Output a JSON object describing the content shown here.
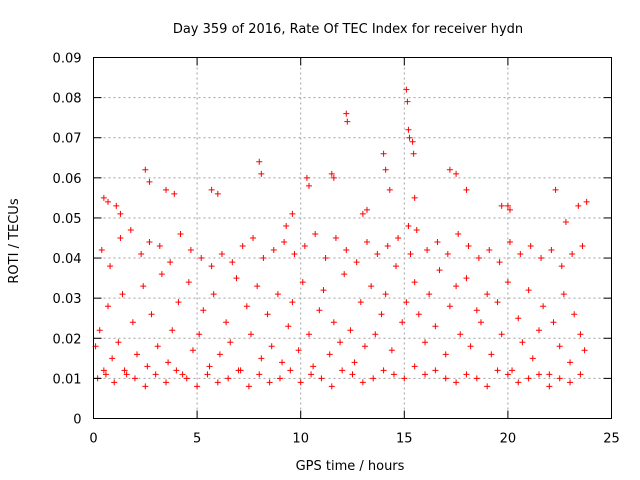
{
  "chart_data": {
    "type": "scatter",
    "title": "Day 359 of 2016, Rate Of TEC Index for receiver hydn",
    "xlabel": "GPS time / hours",
    "ylabel": "ROTI / TECUs",
    "xlim": [
      0,
      25
    ],
    "ylim": [
      0,
      0.09
    ],
    "xticks": [
      "0",
      "5",
      "10",
      "15",
      "20",
      "25"
    ],
    "yticks": [
      "0",
      "0.01",
      "0.02",
      "0.03",
      "0.04",
      "0.05",
      "0.06",
      "0.07",
      "0.08",
      "0.09"
    ],
    "grid": true,
    "marker": "plus",
    "color": "#ff0000",
    "series": [
      {
        "x": [
          0.1,
          0.3,
          0.5,
          0.7,
          0.9,
          1.2,
          1.4,
          1.6,
          1.9,
          2.1,
          2.4,
          2.6,
          2.8,
          3.1,
          3.3,
          3.6,
          3.8,
          4.1,
          4.3,
          4.6,
          4.8,
          5.1,
          5.3,
          5.6,
          5.8,
          6.1,
          6.4,
          6.6,
          6.9,
          7.1,
          7.4,
          7.6,
          7.9,
          8.1,
          8.4,
          8.6,
          8.9,
          9.1,
          9.4,
          9.6,
          9.9,
          10.1,
          10.4,
          10.6,
          10.9,
          11.1,
          11.4,
          11.6,
          11.9,
          12.1,
          12.4,
          12.6,
          12.9,
          13.1,
          13.4,
          13.6,
          13.9,
          14.1,
          14.4,
          14.6,
          14.9,
          15.1,
          15.3,
          15.5,
          15.7,
          16.0,
          16.2,
          16.5,
          16.7,
          17.0,
          17.2,
          17.5,
          17.7,
          18.0,
          18.2,
          18.5,
          18.7,
          19.0,
          19.2,
          19.5,
          19.7,
          20.0,
          20.2,
          20.5,
          20.7,
          21.0,
          21.2,
          21.5,
          21.7,
          22.0,
          22.2,
          22.5,
          22.7,
          23.0,
          23.2,
          23.5,
          23.7,
          0.2,
          0.6,
          1.0,
          1.5,
          2.0,
          2.5,
          3.0,
          3.5,
          4.0,
          4.5,
          5.0,
          5.5,
          6.0,
          6.5,
          7.0,
          7.5,
          8.0,
          8.5,
          9.0,
          9.5,
          10.0,
          10.5,
          11.0,
          11.5,
          12.0,
          12.5,
          13.0,
          13.5,
          14.0,
          14.5,
          15.0,
          15.5,
          16.0,
          16.5,
          17.0,
          17.5,
          18.0,
          18.5,
          19.0,
          19.5,
          20.0,
          20.5,
          21.0,
          21.5,
          22.0,
          22.5,
          23.0,
          23.5,
          0.4,
          0.8,
          1.3,
          1.8,
          2.3,
          2.7,
          3.2,
          3.7,
          4.2,
          4.7,
          5.2,
          5.7,
          6.2,
          6.7,
          7.2,
          7.7,
          8.2,
          8.7,
          9.2,
          9.7,
          10.2,
          10.7,
          11.2,
          11.7,
          12.2,
          12.7,
          13.2,
          13.7,
          14.2,
          14.7,
          15.2,
          15.6,
          16.1,
          16.6,
          17.1,
          17.6,
          18.1,
          18.6,
          19.1,
          19.6,
          20.1,
          20.6,
          21.1,
          21.6,
          22.1,
          22.6,
          23.1,
          23.6,
          8.0,
          8.1,
          10.3,
          10.4,
          11.5,
          11.6,
          12.2,
          12.25,
          14.0,
          14.1,
          15.1,
          15.15,
          15.2,
          15.25,
          15.4,
          15.45,
          15.5,
          14.3,
          2.5,
          2.7,
          3.5,
          3.9,
          5.7,
          6.0,
          17.2,
          17.5,
          18.0,
          19.7,
          20.0,
          20.1,
          22.3,
          22.8,
          23.4,
          23.8,
          13.0,
          13.2,
          9.3,
          9.6,
          0.5,
          0.7,
          1.1,
          1.3
        ],
        "y": [
          0.018,
          0.022,
          0.012,
          0.028,
          0.015,
          0.019,
          0.031,
          0.011,
          0.024,
          0.016,
          0.033,
          0.013,
          0.026,
          0.018,
          0.036,
          0.014,
          0.022,
          0.029,
          0.011,
          0.034,
          0.017,
          0.021,
          0.027,
          0.013,
          0.031,
          0.016,
          0.024,
          0.019,
          0.035,
          0.012,
          0.028,
          0.021,
          0.033,
          0.015,
          0.026,
          0.018,
          0.031,
          0.014,
          0.023,
          0.029,
          0.017,
          0.034,
          0.021,
          0.013,
          0.027,
          0.032,
          0.016,
          0.024,
          0.019,
          0.036,
          0.022,
          0.014,
          0.029,
          0.018,
          0.033,
          0.021,
          0.026,
          0.031,
          0.017,
          0.038,
          0.024,
          0.029,
          0.041,
          0.034,
          0.026,
          0.019,
          0.031,
          0.023,
          0.037,
          0.016,
          0.028,
          0.033,
          0.021,
          0.035,
          0.018,
          0.027,
          0.024,
          0.031,
          0.016,
          0.029,
          0.021,
          0.034,
          0.012,
          0.025,
          0.019,
          0.032,
          0.015,
          0.022,
          0.028,
          0.011,
          0.024,
          0.018,
          0.031,
          0.014,
          0.026,
          0.021,
          0.017,
          0.01,
          0.011,
          0.009,
          0.012,
          0.01,
          0.008,
          0.011,
          0.009,
          0.012,
          0.01,
          0.008,
          0.011,
          0.009,
          0.01,
          0.012,
          0.008,
          0.011,
          0.009,
          0.01,
          0.012,
          0.009,
          0.011,
          0.01,
          0.008,
          0.012,
          0.011,
          0.009,
          0.01,
          0.012,
          0.011,
          0.01,
          0.013,
          0.011,
          0.012,
          0.01,
          0.009,
          0.011,
          0.01,
          0.008,
          0.012,
          0.011,
          0.009,
          0.01,
          0.011,
          0.008,
          0.01,
          0.009,
          0.011,
          0.042,
          0.038,
          0.045,
          0.047,
          0.041,
          0.044,
          0.043,
          0.039,
          0.046,
          0.042,
          0.04,
          0.038,
          0.041,
          0.039,
          0.043,
          0.045,
          0.04,
          0.042,
          0.044,
          0.041,
          0.043,
          0.046,
          0.04,
          0.045,
          0.042,
          0.039,
          0.044,
          0.041,
          0.043,
          0.045,
          0.048,
          0.047,
          0.042,
          0.044,
          0.041,
          0.046,
          0.043,
          0.04,
          0.042,
          0.039,
          0.044,
          0.041,
          0.043,
          0.04,
          0.042,
          0.038,
          0.041,
          0.043,
          0.064,
          0.061,
          0.06,
          0.058,
          0.061,
          0.06,
          0.076,
          0.074,
          0.066,
          0.062,
          0.082,
          0.079,
          0.072,
          0.07,
          0.069,
          0.066,
          0.055,
          0.057,
          0.062,
          0.059,
          0.057,
          0.056,
          0.057,
          0.056,
          0.062,
          0.061,
          0.057,
          0.053,
          0.053,
          0.052,
          0.057,
          0.049,
          0.053,
          0.054,
          0.051,
          0.052,
          0.048,
          0.051,
          0.055,
          0.054,
          0.053,
          0.051
        ]
      }
    ]
  }
}
